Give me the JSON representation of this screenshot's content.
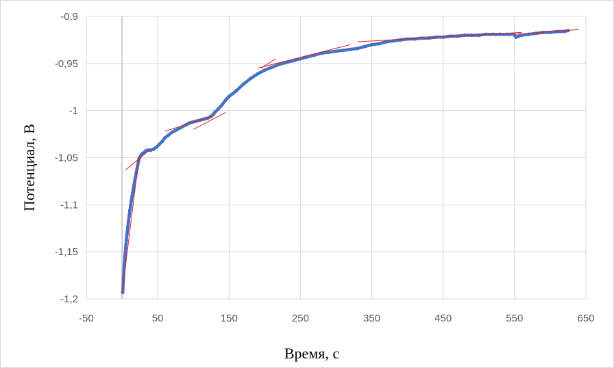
{
  "chart_data": {
    "type": "scatter",
    "xlabel": "Время, с",
    "ylabel": "Потенциал, В",
    "xlim": [
      -50,
      650
    ],
    "ylim": [
      -1.2,
      -0.9
    ],
    "x_ticks": [
      -50,
      50,
      150,
      250,
      350,
      450,
      550,
      650
    ],
    "y_ticks": [
      -0.9,
      -0.95,
      -1,
      -1.05,
      -1.1,
      -1.15,
      -1.2
    ],
    "x_tick_labels": [
      "-50",
      "50",
      "150",
      "250",
      "350",
      "450",
      "550",
      "650"
    ],
    "y_tick_labels": [
      "-0,9",
      "-0,95",
      "-1",
      "-1,05",
      "-1,1",
      "-1,15",
      "-1,2"
    ],
    "grid": true,
    "legend": "none",
    "colors": {
      "points": "#4472C4",
      "fit_lines": "#E41A1C",
      "grid": "#d9d9d9"
    },
    "series": [
      {
        "values": [
          [
            1,
            -1.193
          ],
          [
            2,
            -1.178
          ],
          [
            3,
            -1.166
          ],
          [
            4,
            -1.155
          ],
          [
            5,
            -1.146
          ],
          [
            6,
            -1.138
          ],
          [
            7,
            -1.131
          ],
          [
            8,
            -1.124
          ],
          [
            9,
            -1.118
          ],
          [
            10,
            -1.112
          ],
          [
            11,
            -1.106
          ],
          [
            12,
            -1.101
          ],
          [
            13,
            -1.096
          ],
          [
            14,
            -1.091
          ],
          [
            15,
            -1.087
          ],
          [
            16,
            -1.082
          ],
          [
            17,
            -1.078
          ],
          [
            18,
            -1.074
          ],
          [
            19,
            -1.07
          ],
          [
            20,
            -1.066
          ],
          [
            21,
            -1.062
          ],
          [
            22,
            -1.058
          ],
          [
            23,
            -1.054
          ],
          [
            24,
            -1.051
          ],
          [
            26,
            -1.048
          ],
          [
            28,
            -1.046
          ],
          [
            30,
            -1.045
          ],
          [
            33,
            -1.043
          ],
          [
            36,
            -1.042
          ],
          [
            40,
            -1.042
          ],
          [
            44,
            -1.041
          ],
          [
            48,
            -1.039
          ],
          [
            52,
            -1.036
          ],
          [
            56,
            -1.033
          ],
          [
            60,
            -1.029
          ],
          [
            65,
            -1.026
          ],
          [
            70,
            -1.023
          ],
          [
            75,
            -1.021
          ],
          [
            80,
            -1.019
          ],
          [
            85,
            -1.017
          ],
          [
            90,
            -1.015
          ],
          [
            95,
            -1.013
          ],
          [
            100,
            -1.012
          ],
          [
            105,
            -1.011
          ],
          [
            110,
            -1.01
          ],
          [
            115,
            -1.009
          ],
          [
            120,
            -1.008
          ],
          [
            125,
            -1.006
          ],
          [
            130,
            -1.002
          ],
          [
            135,
            -0.998
          ],
          [
            140,
            -0.994
          ],
          [
            145,
            -0.989
          ],
          [
            150,
            -0.985
          ],
          [
            160,
            -0.979
          ],
          [
            170,
            -0.972
          ],
          [
            180,
            -0.966
          ],
          [
            190,
            -0.961
          ],
          [
            200,
            -0.957
          ],
          [
            210,
            -0.954
          ],
          [
            220,
            -0.951
          ],
          [
            230,
            -0.949
          ],
          [
            240,
            -0.947
          ],
          [
            250,
            -0.945
          ],
          [
            260,
            -0.943
          ],
          [
            270,
            -0.941
          ],
          [
            280,
            -0.939
          ],
          [
            290,
            -0.938
          ],
          [
            300,
            -0.937
          ],
          [
            310,
            -0.936
          ],
          [
            320,
            -0.935
          ],
          [
            330,
            -0.934
          ],
          [
            340,
            -0.932
          ],
          [
            350,
            -0.93
          ],
          [
            360,
            -0.929
          ],
          [
            370,
            -0.927
          ],
          [
            380,
            -0.926
          ],
          [
            390,
            -0.925
          ],
          [
            400,
            -0.924
          ],
          [
            410,
            -0.924
          ],
          [
            420,
            -0.923
          ],
          [
            430,
            -0.923
          ],
          [
            440,
            -0.922
          ],
          [
            450,
            -0.922
          ],
          [
            460,
            -0.921
          ],
          [
            470,
            -0.921
          ],
          [
            480,
            -0.92
          ],
          [
            490,
            -0.92
          ],
          [
            500,
            -0.92
          ],
          [
            510,
            -0.919
          ],
          [
            520,
            -0.919
          ],
          [
            530,
            -0.919
          ],
          [
            540,
            -0.919
          ],
          [
            549,
            -0.919
          ],
          [
            552,
            -0.922
          ],
          [
            556,
            -0.921
          ],
          [
            560,
            -0.92
          ],
          [
            570,
            -0.919
          ],
          [
            580,
            -0.918
          ],
          [
            590,
            -0.917
          ],
          [
            600,
            -0.917
          ],
          [
            610,
            -0.916
          ],
          [
            620,
            -0.916
          ],
          [
            625,
            -0.915
          ]
        ]
      }
    ],
    "fit_lines": [
      [
        [
          0,
          -1.195
        ],
        [
          24,
          -1.048
        ]
      ],
      [
        [
          5,
          -1.063
        ],
        [
          40,
          -1.041
        ]
      ],
      [
        [
          60,
          -1.022
        ],
        [
          130,
          -1.005
        ]
      ],
      [
        [
          100,
          -1.02
        ],
        [
          145,
          -1.002
        ]
      ],
      [
        [
          195,
          -0.955
        ],
        [
          215,
          -0.945
        ]
      ],
      [
        [
          190,
          -0.955
        ],
        [
          320,
          -0.93
        ]
      ],
      [
        [
          330,
          -0.927
        ],
        [
          560,
          -0.917
        ]
      ],
      [
        [
          550,
          -0.919
        ],
        [
          640,
          -0.914
        ]
      ]
    ]
  },
  "labels": {
    "xlabel": "Время, с",
    "ylabel": "Потенциал, В"
  }
}
